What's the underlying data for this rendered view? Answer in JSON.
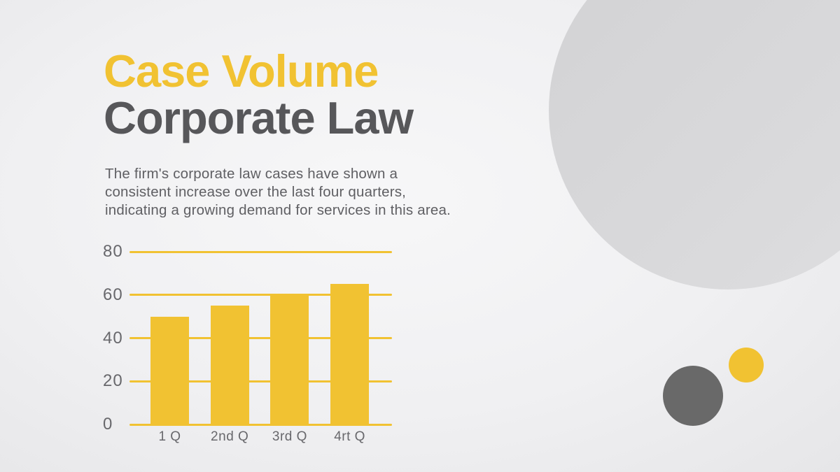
{
  "slide": {
    "title_line1": "Case Volume",
    "title_line2": "Corporate Law",
    "description_lines": [
      "The firm's corporate law cases have shown a",
      "consistent increase over the last four quarters,",
      "indicating a growing demand for services in this area."
    ],
    "description_full": "The firm's corporate law cases have shown a consistent increase over the last four quarters, indicating a growing demand for services in this area."
  },
  "colors": {
    "accent_yellow": "#F1C232",
    "title_gray": "#57575A",
    "text_gray": "#5F5F63",
    "axis_gray": "#68686C",
    "circle_gray_large": "#D6D6D8",
    "circle_gray_small": "#696969",
    "background": "#F0F0F2"
  },
  "chart_data": {
    "type": "bar",
    "title": "",
    "categories": [
      "1 Q",
      "2nd Q",
      "3rd Q",
      "4rt Q"
    ],
    "values": [
      50,
      55,
      60,
      65
    ],
    "y_ticks": [
      0,
      20,
      40,
      60,
      80
    ],
    "ylim": [
      0,
      80
    ],
    "xlabel": "",
    "ylabel": "",
    "grid": "horizontal-only",
    "gridline_color": "#F1C232",
    "bar_color": "#F1C232",
    "legend_position": "none"
  }
}
